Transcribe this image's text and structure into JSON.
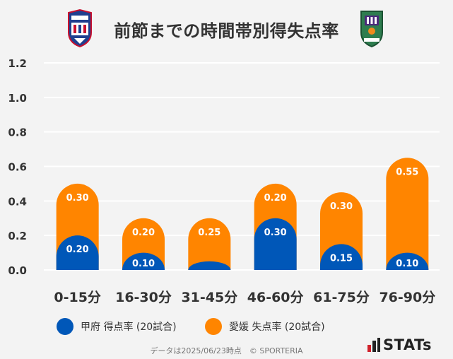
{
  "header": {
    "title": "前節までの時間帯別得失点率",
    "team_left_logo": "ventforet-kofu-crest-icon",
    "team_right_logo": "ehime-fc-crest-icon"
  },
  "colors": {
    "team1": "#0057b8",
    "team2": "#ff8500",
    "grid": "#ffffff",
    "background": "#f3f3f3"
  },
  "chart_data": {
    "type": "bar",
    "categories": [
      "0-15分",
      "16-30分",
      "31-45分",
      "46-60分",
      "61-75分",
      "76-90分"
    ],
    "series": [
      {
        "name": "甲府 得点率 (20試合)",
        "values": [
          0.2,
          0.1,
          0.05,
          0.3,
          0.15,
          0.1
        ],
        "labels": [
          "0.20",
          "0.10",
          "",
          "0.30",
          "0.15",
          "0.10"
        ]
      },
      {
        "name": "愛媛 失点率 (20試合)",
        "values": [
          0.3,
          0.2,
          0.25,
          0.2,
          0.3,
          0.55
        ],
        "labels": [
          "0.30",
          "0.20",
          "0.25",
          "0.20",
          "0.30",
          "0.55"
        ]
      }
    ],
    "stacked": true,
    "y_ticks": [
      "0.0",
      "0.2",
      "0.4",
      "0.6",
      "0.8",
      "1.0",
      "1.2"
    ],
    "ylim": [
      0,
      1.2
    ],
    "grid": true,
    "legend_position": "bottom"
  },
  "footer": {
    "note": "データは2025/06/23時点　© SPORTERIA",
    "brand": "STATs"
  }
}
